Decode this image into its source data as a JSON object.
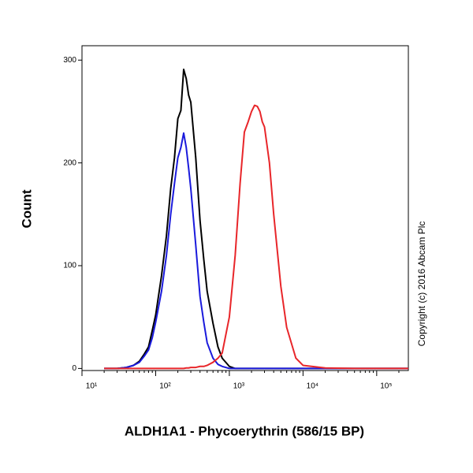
{
  "chart_data": {
    "type": "line",
    "x_label": "ALDH1A1 - Phycoerythrin (586/15 BP)",
    "y_label": "Count",
    "annotation": "Copyright (c) 2016 Abcam Plc",
    "xscale": "log",
    "x": [
      20,
      30,
      40,
      50,
      60,
      70,
      80,
      90,
      100,
      120,
      140,
      160,
      180,
      200,
      220,
      240,
      260,
      280,
      300,
      350,
      400,
      450,
      500,
      600,
      700,
      800,
      1000,
      1200,
      1400,
      1600,
      1800,
      2000,
      2200,
      2400,
      2600,
      2800,
      3000,
      3500,
      4000,
      5000,
      6000,
      8000,
      10000,
      20000,
      50000,
      100000,
      269000
    ],
    "series": [
      {
        "color": "#000000",
        "values": [
          0,
          0,
          1,
          3,
          7,
          14,
          21,
          37,
          52,
          90,
          129,
          175,
          205,
          243,
          251,
          291,
          282,
          266,
          259,
          205,
          144,
          106,
          75,
          44,
          21,
          10,
          2,
          0,
          0,
          0,
          0,
          0,
          0,
          0,
          0,
          0,
          0,
          0,
          0,
          0,
          0,
          0,
          0,
          0,
          0,
          0,
          0
        ]
      },
      {
        "color": "#1a1adc",
        "values": [
          0,
          0,
          1,
          3,
          6,
          12,
          18,
          30,
          45,
          75,
          110,
          150,
          180,
          205,
          215,
          229,
          215,
          195,
          175,
          120,
          70,
          45,
          25,
          10,
          4,
          2,
          0,
          0,
          0,
          0,
          0,
          0,
          0,
          0,
          0,
          0,
          0,
          0,
          0,
          0,
          0,
          0,
          0,
          0,
          0,
          0,
          0
        ]
      },
      {
        "color": "#e8262a",
        "values": [
          0,
          0,
          0,
          0,
          0,
          0,
          0,
          0,
          0,
          0,
          0,
          0,
          0,
          0,
          0,
          0,
          0.5,
          0.5,
          1,
          1,
          2,
          2,
          3,
          6,
          10,
          15,
          50,
          110,
          180,
          230,
          240,
          250,
          256,
          255,
          250,
          240,
          235,
          200,
          150,
          80,
          40,
          10,
          3,
          0.5,
          0,
          0,
          0
        ]
      }
    ],
    "xlim": [
      10,
      269000
    ],
    "ylim": [
      -2,
      314
    ],
    "xticks": [
      {
        "value": 10,
        "label": "10¹"
      },
      {
        "value": 100,
        "label": "10²"
      },
      {
        "value": 1000,
        "label": "10³"
      },
      {
        "value": 10000,
        "label": "10⁴"
      },
      {
        "value": 100000,
        "label": "10⁵"
      }
    ],
    "yticks": [
      0,
      100,
      200,
      300
    ]
  }
}
